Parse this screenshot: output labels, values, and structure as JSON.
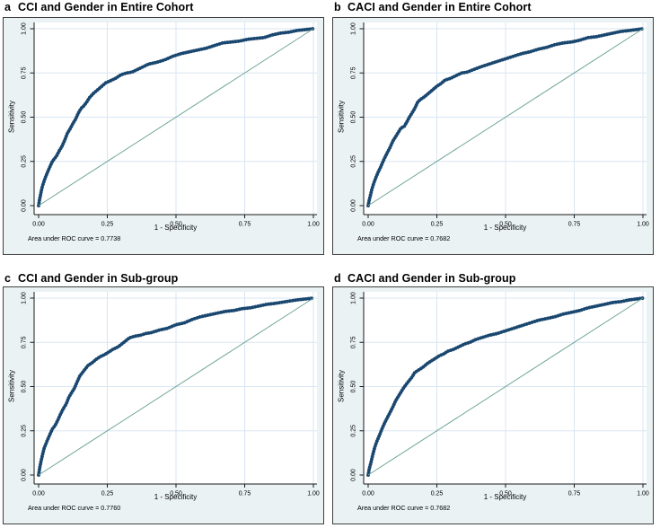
{
  "figure": {
    "background": "#ffffff",
    "colors": {
      "panel_bg": "#eaf2f3",
      "plot_bg": "#ffffff",
      "grid": "#d9e6f2",
      "axis": "#1a1a1a",
      "tick_text": "#000000",
      "curve": "#1a476f",
      "reference": "#6fa598",
      "border": "#3f3f3f"
    }
  },
  "chart_data": [
    {
      "type": "line",
      "panel_label": "a",
      "title": "CCI and Gender in Entire Cohort",
      "xlabel": "1 - Specificity",
      "ylabel": "Sensitivity",
      "annotation": "Area under ROC curve = 0.7738",
      "auc": 0.7738,
      "xlim": [
        0,
        1
      ],
      "ylim": [
        0,
        1
      ],
      "xticks": [
        "0.00",
        "0.25",
        "0.50",
        "0.75",
        "1.00"
      ],
      "yticks": [
        "0.00",
        "0.25",
        "0.50",
        "0.75",
        "1.00"
      ],
      "grid": true,
      "legend": "none",
      "series": [
        {
          "name": "ROC curve",
          "role": "roc",
          "points": [
            [
              0,
              0
            ],
            [
              0.003,
              0.03
            ],
            [
              0.007,
              0.06
            ],
            [
              0.012,
              0.1
            ],
            [
              0.018,
              0.13
            ],
            [
              0.025,
              0.16
            ],
            [
              0.03,
              0.18
            ],
            [
              0.04,
              0.215
            ],
            [
              0.05,
              0.25
            ],
            [
              0.055,
              0.26
            ],
            [
              0.065,
              0.28
            ],
            [
              0.075,
              0.31
            ],
            [
              0.085,
              0.335
            ],
            [
              0.095,
              0.37
            ],
            [
              0.105,
              0.41
            ],
            [
              0.115,
              0.435
            ],
            [
              0.125,
              0.465
            ],
            [
              0.135,
              0.49
            ],
            [
              0.145,
              0.525
            ],
            [
              0.155,
              0.55
            ],
            [
              0.165,
              0.565
            ],
            [
              0.175,
              0.585
            ],
            [
              0.185,
              0.61
            ],
            [
              0.2,
              0.635
            ],
            [
              0.215,
              0.655
            ],
            [
              0.23,
              0.675
            ],
            [
              0.245,
              0.695
            ],
            [
              0.26,
              0.705
            ],
            [
              0.28,
              0.72
            ],
            [
              0.3,
              0.74
            ],
            [
              0.32,
              0.75
            ],
            [
              0.34,
              0.755
            ],
            [
              0.36,
              0.77
            ],
            [
              0.38,
              0.785
            ],
            [
              0.4,
              0.8
            ],
            [
              0.43,
              0.81
            ],
            [
              0.46,
              0.825
            ],
            [
              0.49,
              0.845
            ],
            [
              0.52,
              0.86
            ],
            [
              0.55,
              0.87
            ],
            [
              0.58,
              0.88
            ],
            [
              0.61,
              0.89
            ],
            [
              0.64,
              0.905
            ],
            [
              0.67,
              0.92
            ],
            [
              0.7,
              0.925
            ],
            [
              0.73,
              0.93
            ],
            [
              0.76,
              0.94
            ],
            [
              0.79,
              0.945
            ],
            [
              0.82,
              0.95
            ],
            [
              0.85,
              0.965
            ],
            [
              0.88,
              0.975
            ],
            [
              0.91,
              0.98
            ],
            [
              0.94,
              0.99
            ],
            [
              0.97,
              0.995
            ],
            [
              1,
              1
            ]
          ]
        },
        {
          "name": "Reference",
          "role": "reference",
          "points": [
            [
              0,
              0
            ],
            [
              1,
              1
            ]
          ]
        }
      ]
    },
    {
      "type": "line",
      "panel_label": "b",
      "title": "CACI and Gender in Entire Cohort",
      "xlabel": "1 - Specificity",
      "ylabel": "Sensitivity",
      "annotation": "Area under ROC curve = 0.7682",
      "auc": 0.7682,
      "xlim": [
        0,
        1
      ],
      "ylim": [
        0,
        1
      ],
      "xticks": [
        "0.00",
        "0.25",
        "0.50",
        "0.75",
        "1.00"
      ],
      "yticks": [
        "0.00",
        "0.25",
        "0.50",
        "0.75",
        "1.00"
      ],
      "grid": true,
      "legend": "none",
      "series": [
        {
          "name": "ROC curve",
          "role": "roc",
          "points": [
            [
              0,
              0
            ],
            [
              0.003,
              0.025
            ],
            [
              0.008,
              0.055
            ],
            [
              0.013,
              0.09
            ],
            [
              0.02,
              0.125
            ],
            [
              0.027,
              0.155
            ],
            [
              0.035,
              0.185
            ],
            [
              0.043,
              0.21
            ],
            [
              0.05,
              0.235
            ],
            [
              0.06,
              0.27
            ],
            [
              0.07,
              0.3
            ],
            [
              0.08,
              0.33
            ],
            [
              0.09,
              0.365
            ],
            [
              0.1,
              0.39
            ],
            [
              0.11,
              0.415
            ],
            [
              0.12,
              0.44
            ],
            [
              0.13,
              0.445
            ],
            [
              0.14,
              0.47
            ],
            [
              0.15,
              0.5
            ],
            [
              0.16,
              0.525
            ],
            [
              0.17,
              0.55
            ],
            [
              0.18,
              0.585
            ],
            [
              0.19,
              0.6
            ],
            [
              0.205,
              0.615
            ],
            [
              0.22,
              0.635
            ],
            [
              0.235,
              0.655
            ],
            [
              0.25,
              0.675
            ],
            [
              0.265,
              0.69
            ],
            [
              0.28,
              0.71
            ],
            [
              0.3,
              0.72
            ],
            [
              0.32,
              0.735
            ],
            [
              0.34,
              0.75
            ],
            [
              0.36,
              0.755
            ],
            [
              0.385,
              0.77
            ],
            [
              0.41,
              0.785
            ],
            [
              0.44,
              0.8
            ],
            [
              0.47,
              0.815
            ],
            [
              0.5,
              0.83
            ],
            [
              0.53,
              0.845
            ],
            [
              0.56,
              0.86
            ],
            [
              0.59,
              0.87
            ],
            [
              0.62,
              0.885
            ],
            [
              0.65,
              0.895
            ],
            [
              0.68,
              0.91
            ],
            [
              0.71,
              0.92
            ],
            [
              0.74,
              0.925
            ],
            [
              0.77,
              0.935
            ],
            [
              0.8,
              0.95
            ],
            [
              0.83,
              0.955
            ],
            [
              0.86,
              0.965
            ],
            [
              0.89,
              0.975
            ],
            [
              0.92,
              0.985
            ],
            [
              0.95,
              0.99
            ],
            [
              1,
              1
            ]
          ]
        },
        {
          "name": "Reference",
          "role": "reference",
          "points": [
            [
              0,
              0
            ],
            [
              1,
              1
            ]
          ]
        }
      ]
    },
    {
      "type": "line",
      "panel_label": "c",
      "title": "CCI and Gender in Sub-group",
      "xlabel": "1 - Specificity",
      "ylabel": "Sensitivity",
      "annotation": "Area under ROC curve = 0.7760",
      "auc": 0.776,
      "xlim": [
        0,
        1
      ],
      "ylim": [
        0,
        1
      ],
      "xticks": [
        "0.00",
        "0.25",
        "0.50",
        "0.75",
        "1.00"
      ],
      "yticks": [
        "0.00",
        "0.25",
        "0.50",
        "0.75",
        "1.00"
      ],
      "grid": true,
      "legend": "none",
      "series": [
        {
          "name": "ROC curve",
          "role": "roc",
          "points": [
            [
              0,
              0
            ],
            [
              0.004,
              0.04
            ],
            [
              0.009,
              0.08
            ],
            [
              0.015,
              0.12
            ],
            [
              0.02,
              0.15
            ],
            [
              0.03,
              0.19
            ],
            [
              0.04,
              0.225
            ],
            [
              0.05,
              0.26
            ],
            [
              0.06,
              0.28
            ],
            [
              0.07,
              0.31
            ],
            [
              0.08,
              0.345
            ],
            [
              0.09,
              0.375
            ],
            [
              0.1,
              0.4
            ],
            [
              0.11,
              0.44
            ],
            [
              0.12,
              0.465
            ],
            [
              0.13,
              0.49
            ],
            [
              0.14,
              0.525
            ],
            [
              0.15,
              0.56
            ],
            [
              0.16,
              0.58
            ],
            [
              0.17,
              0.6
            ],
            [
              0.18,
              0.62
            ],
            [
              0.195,
              0.635
            ],
            [
              0.21,
              0.655
            ],
            [
              0.225,
              0.67
            ],
            [
              0.24,
              0.68
            ],
            [
              0.255,
              0.695
            ],
            [
              0.27,
              0.71
            ],
            [
              0.29,
              0.725
            ],
            [
              0.31,
              0.75
            ],
            [
              0.33,
              0.775
            ],
            [
              0.35,
              0.785
            ],
            [
              0.37,
              0.79
            ],
            [
              0.39,
              0.8
            ],
            [
              0.41,
              0.805
            ],
            [
              0.44,
              0.82
            ],
            [
              0.47,
              0.83
            ],
            [
              0.5,
              0.85
            ],
            [
              0.53,
              0.86
            ],
            [
              0.56,
              0.88
            ],
            [
              0.59,
              0.895
            ],
            [
              0.62,
              0.905
            ],
            [
              0.65,
              0.915
            ],
            [
              0.68,
              0.925
            ],
            [
              0.71,
              0.93
            ],
            [
              0.74,
              0.94
            ],
            [
              0.77,
              0.945
            ],
            [
              0.8,
              0.955
            ],
            [
              0.83,
              0.965
            ],
            [
              0.86,
              0.97
            ],
            [
              0.9,
              0.98
            ],
            [
              0.94,
              0.99
            ],
            [
              1,
              1
            ]
          ]
        },
        {
          "name": "Reference",
          "role": "reference",
          "points": [
            [
              0,
              0
            ],
            [
              1,
              1
            ]
          ]
        }
      ]
    },
    {
      "type": "line",
      "panel_label": "d",
      "title": "CACI and Gender in Sub-group",
      "xlabel": "1 - Specificity",
      "ylabel": "Sensitivity",
      "annotation": "Area under ROC curve = 0.7682",
      "auc": 0.7682,
      "xlim": [
        0,
        1
      ],
      "ylim": [
        0,
        1
      ],
      "xticks": [
        "0.00",
        "0.25",
        "0.50",
        "0.75",
        "1.00"
      ],
      "yticks": [
        "0.00",
        "0.25",
        "0.50",
        "0.75",
        "1.00"
      ],
      "grid": true,
      "legend": "none",
      "series": [
        {
          "name": "ROC curve",
          "role": "roc",
          "points": [
            [
              0,
              0
            ],
            [
              0.004,
              0.035
            ],
            [
              0.01,
              0.07
            ],
            [
              0.016,
              0.11
            ],
            [
              0.023,
              0.15
            ],
            [
              0.03,
              0.185
            ],
            [
              0.04,
              0.22
            ],
            [
              0.05,
              0.26
            ],
            [
              0.06,
              0.295
            ],
            [
              0.07,
              0.325
            ],
            [
              0.08,
              0.355
            ],
            [
              0.09,
              0.385
            ],
            [
              0.1,
              0.42
            ],
            [
              0.11,
              0.445
            ],
            [
              0.12,
              0.47
            ],
            [
              0.13,
              0.495
            ],
            [
              0.14,
              0.515
            ],
            [
              0.15,
              0.535
            ],
            [
              0.16,
              0.555
            ],
            [
              0.17,
              0.58
            ],
            [
              0.185,
              0.595
            ],
            [
              0.2,
              0.61
            ],
            [
              0.215,
              0.63
            ],
            [
              0.23,
              0.645
            ],
            [
              0.245,
              0.66
            ],
            [
              0.26,
              0.675
            ],
            [
              0.275,
              0.685
            ],
            [
              0.29,
              0.7
            ],
            [
              0.31,
              0.71
            ],
            [
              0.33,
              0.725
            ],
            [
              0.35,
              0.74
            ],
            [
              0.37,
              0.75
            ],
            [
              0.39,
              0.765
            ],
            [
              0.41,
              0.775
            ],
            [
              0.44,
              0.79
            ],
            [
              0.47,
              0.8
            ],
            [
              0.5,
              0.815
            ],
            [
              0.53,
              0.83
            ],
            [
              0.56,
              0.845
            ],
            [
              0.59,
              0.86
            ],
            [
              0.62,
              0.875
            ],
            [
              0.65,
              0.885
            ],
            [
              0.68,
              0.895
            ],
            [
              0.71,
              0.91
            ],
            [
              0.74,
              0.92
            ],
            [
              0.77,
              0.93
            ],
            [
              0.8,
              0.945
            ],
            [
              0.83,
              0.955
            ],
            [
              0.86,
              0.965
            ],
            [
              0.89,
              0.975
            ],
            [
              0.92,
              0.98
            ],
            [
              0.95,
              0.99
            ],
            [
              1,
              1
            ]
          ]
        },
        {
          "name": "Reference",
          "role": "reference",
          "points": [
            [
              0,
              0
            ],
            [
              1,
              1
            ]
          ]
        }
      ]
    }
  ]
}
